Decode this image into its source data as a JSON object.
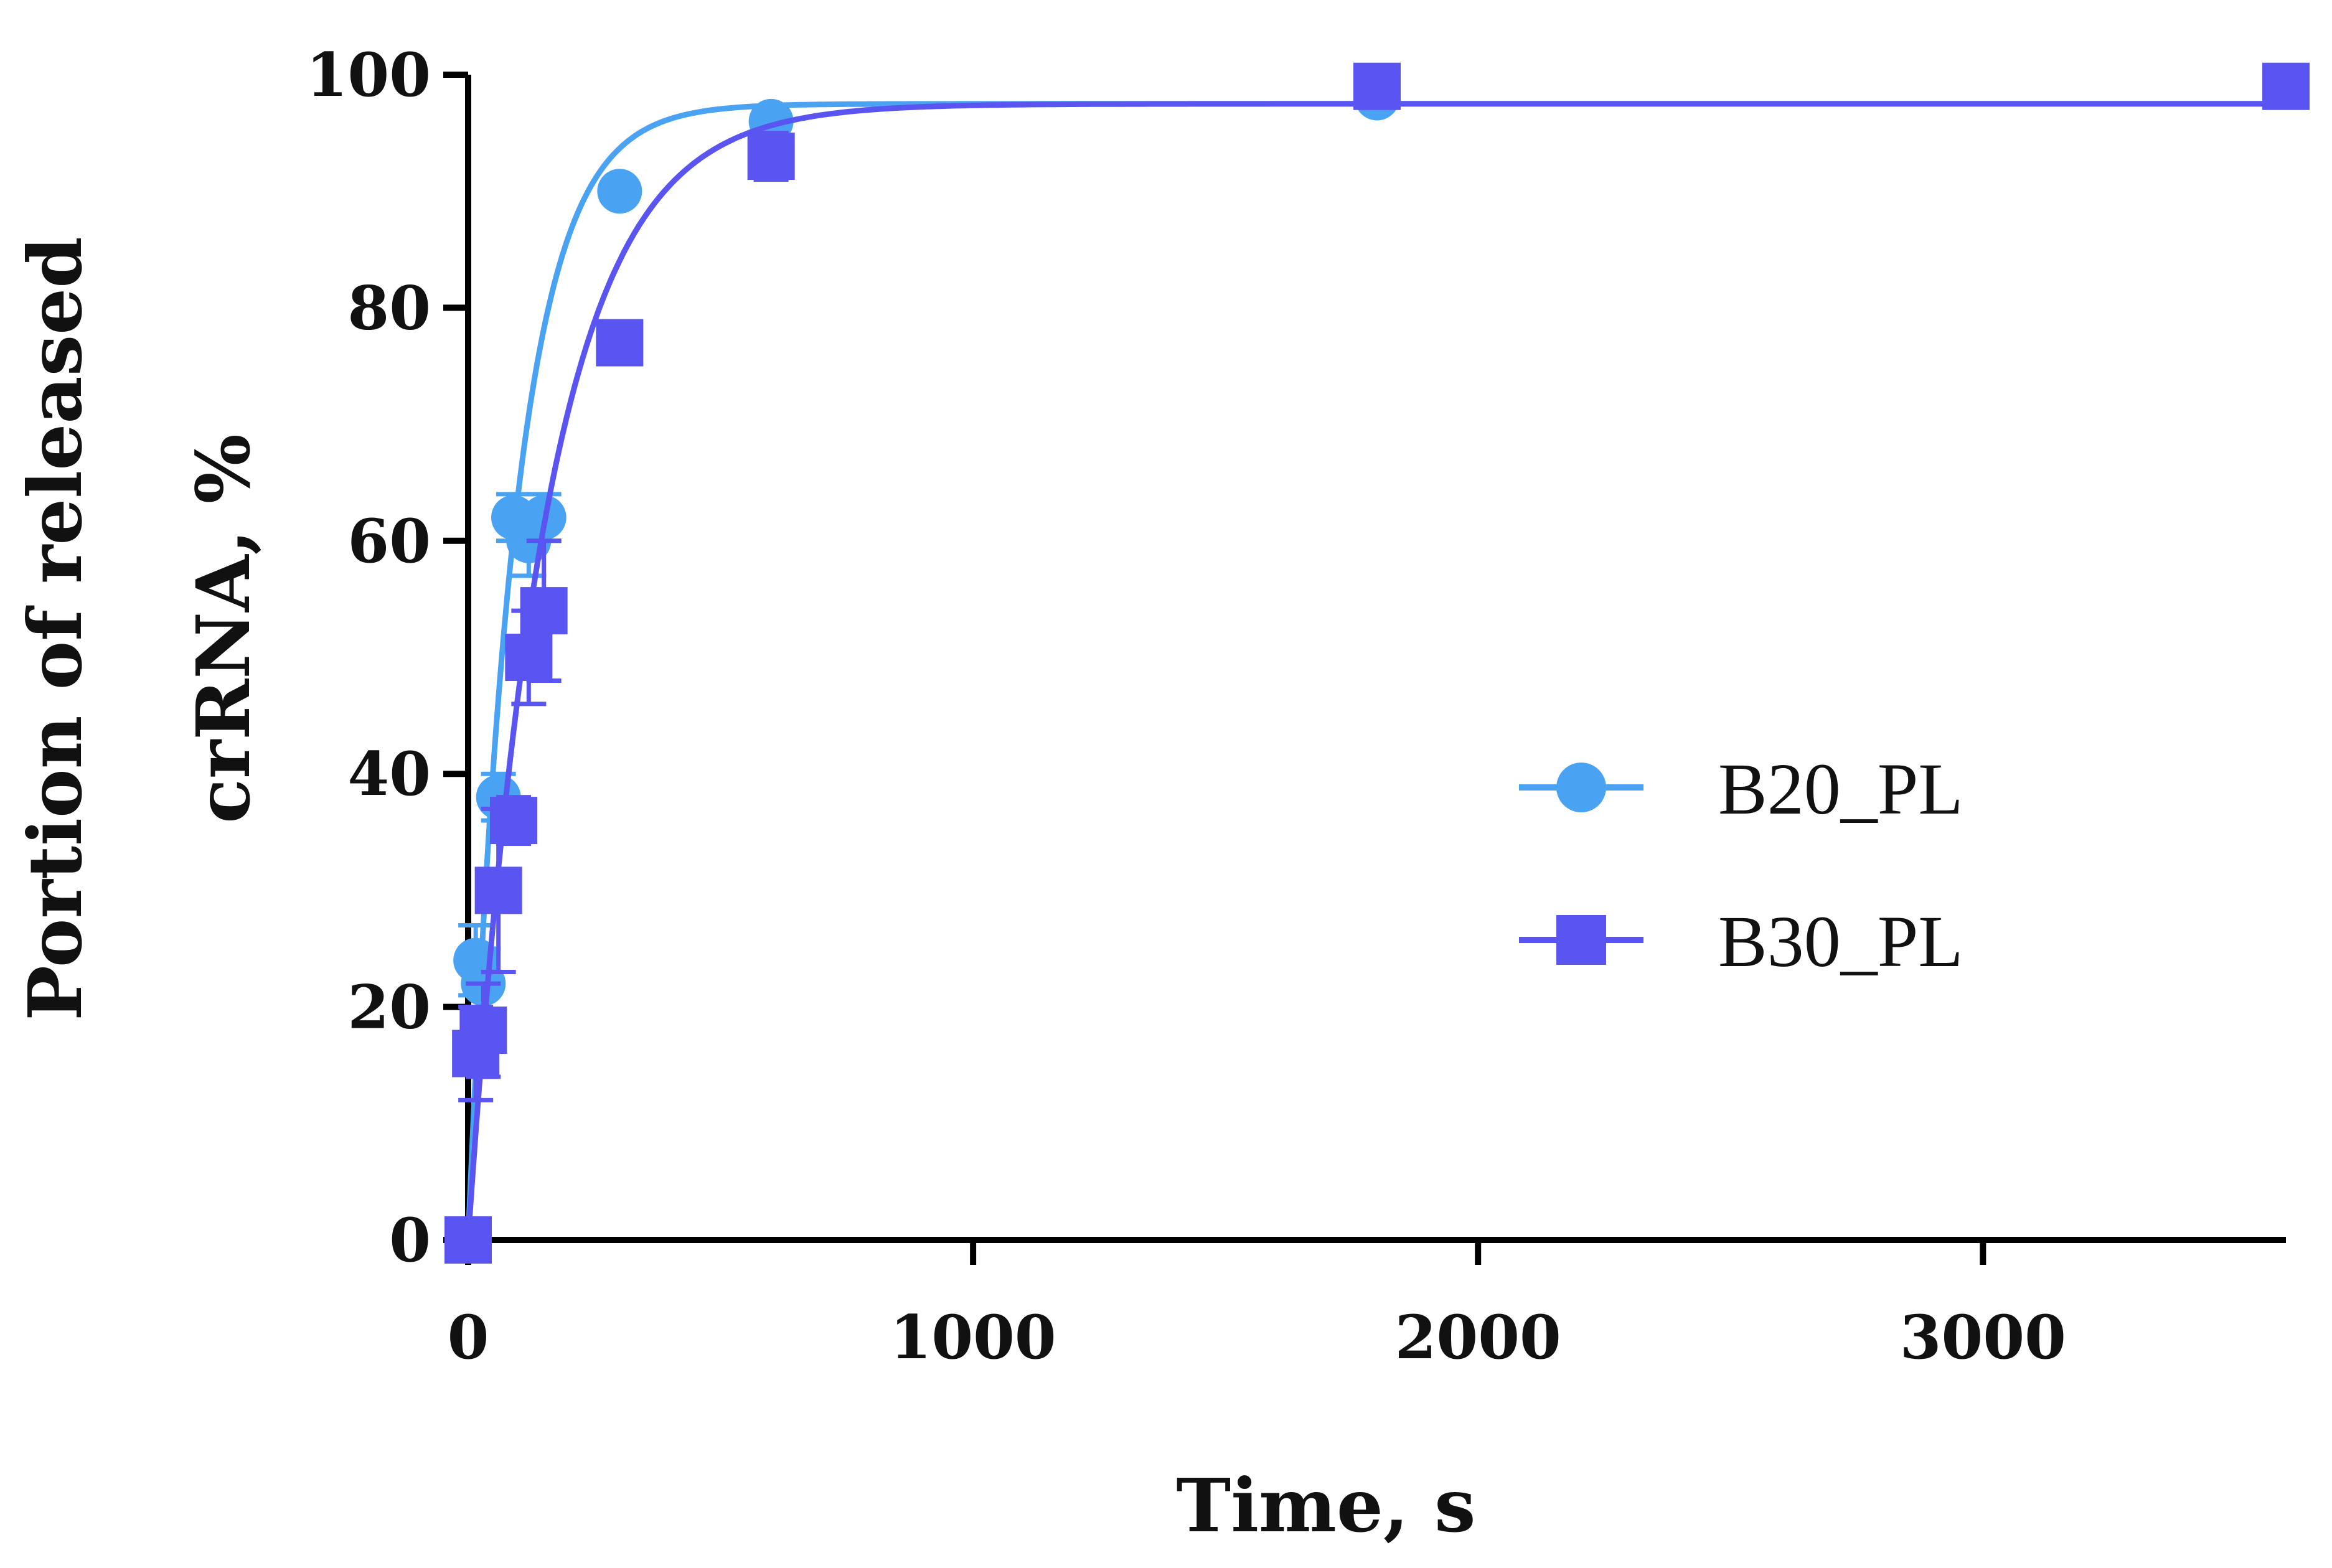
{
  "chart_data": {
    "type": "scatter",
    "title": "",
    "xlabel": "Time, s",
    "ylabel_lines": [
      "Portion of released",
      "crRNA, %"
    ],
    "xlim": [
      0,
      3600
    ],
    "ylim": [
      0,
      100
    ],
    "x_ticks": [
      0,
      1000,
      2000,
      3000
    ],
    "y_ticks": [
      0,
      20,
      40,
      60,
      80,
      100
    ],
    "grid": false,
    "legend_position": "right",
    "series": [
      {
        "name": "B20_PL",
        "color": "#4aa3f2",
        "marker": "circle",
        "x": [
          0,
          15,
          30,
          60,
          90,
          120,
          150,
          300,
          600,
          1800,
          3600
        ],
        "y": [
          0,
          24,
          22,
          38,
          62,
          60,
          62,
          90,
          96,
          98,
          99
        ],
        "error": [
          0,
          3,
          3,
          2,
          2,
          3,
          2,
          1,
          1,
          1,
          1
        ],
        "fit": {
          "ymax": 97.5,
          "k": 0.0108
        }
      },
      {
        "name": "B30_PL",
        "color": "#5a55f0",
        "marker": "square",
        "x": [
          0,
          15,
          30,
          60,
          90,
          120,
          150,
          300,
          600,
          1800,
          3600
        ],
        "y": [
          0,
          16,
          18,
          30,
          36,
          50,
          54,
          77,
          93,
          99,
          99
        ],
        "error": [
          0,
          4,
          4,
          7,
          2,
          4,
          6,
          1,
          2,
          1,
          1
        ],
        "fit": {
          "ymax": 97.5,
          "k": 0.0066
        }
      }
    ]
  }
}
